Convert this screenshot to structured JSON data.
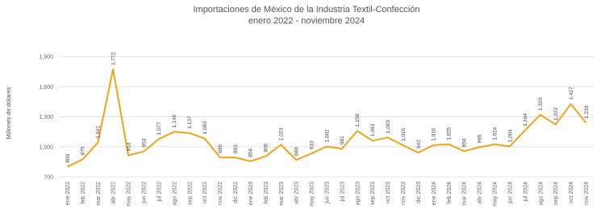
{
  "chart_data": {
    "type": "line",
    "title": "Importaciones de México de la Industria Textil-Confección",
    "subtitle": "enero 2022 - noviembre 2024",
    "y_label": "Millones de dólares",
    "categories": [
      "ene 2022",
      "feb 2022",
      "mar 2022",
      "abr 2022",
      "may 2022",
      "jun 2022",
      "jul 2022",
      "ago 2022",
      "sep 2022",
      "oct 2022",
      "nov 2022",
      "dic 2022",
      "ene 2023",
      "feb 2023",
      "mar 2023",
      "abr 2023",
      "may 2023",
      "jun 2023",
      "jul 2023",
      "ago 2023",
      "sep 2023",
      "oct 2023",
      "nov 2023",
      "dic 2023",
      "ene 2024",
      "feb 2024",
      "mar 2024",
      "abr 2024",
      "may 2024",
      "jun 2024",
      "jul 2024",
      "ago 2024",
      "sep 2024",
      "oct 2024",
      "nov 2024"
    ],
    "values": [
      800,
      875,
      1041,
      1772,
      914,
      953,
      1077,
      1149,
      1137,
      1083,
      895,
      893,
      856,
      905,
      1021,
      869,
      933,
      1002,
      981,
      1158,
      1061,
      1093,
      1015,
      942,
      1016,
      1025,
      956,
      995,
      1024,
      1004,
      1164,
      1320,
      1222,
      1427,
      1239
    ],
    "value_labels": [
      "800",
      "875",
      "1,041",
      "1,772",
      "914",
      "953",
      "1,077",
      "1,149",
      "1,137",
      "1,083",
      "895",
      "893",
      "856",
      "905",
      "1,021",
      "869",
      "933",
      "1,002",
      "981",
      "1,158",
      "1,061",
      "1,093",
      "1,015",
      "942",
      "1,016",
      "1,025",
      "956",
      "995",
      "1,024",
      "1,004",
      "1,164",
      "1,320",
      "1,222",
      "1,427",
      "1,239"
    ],
    "color": "#f4a21c",
    "ylim": [
      700,
      1900
    ],
    "yticks": [
      {
        "value": 700,
        "label": "700"
      },
      {
        "value": 1000,
        "label": "1,000"
      },
      {
        "value": 1300,
        "label": "1,300"
      },
      {
        "value": 1600,
        "label": "1,600"
      },
      {
        "value": 1900,
        "label": "1,900"
      }
    ],
    "grid": true
  }
}
